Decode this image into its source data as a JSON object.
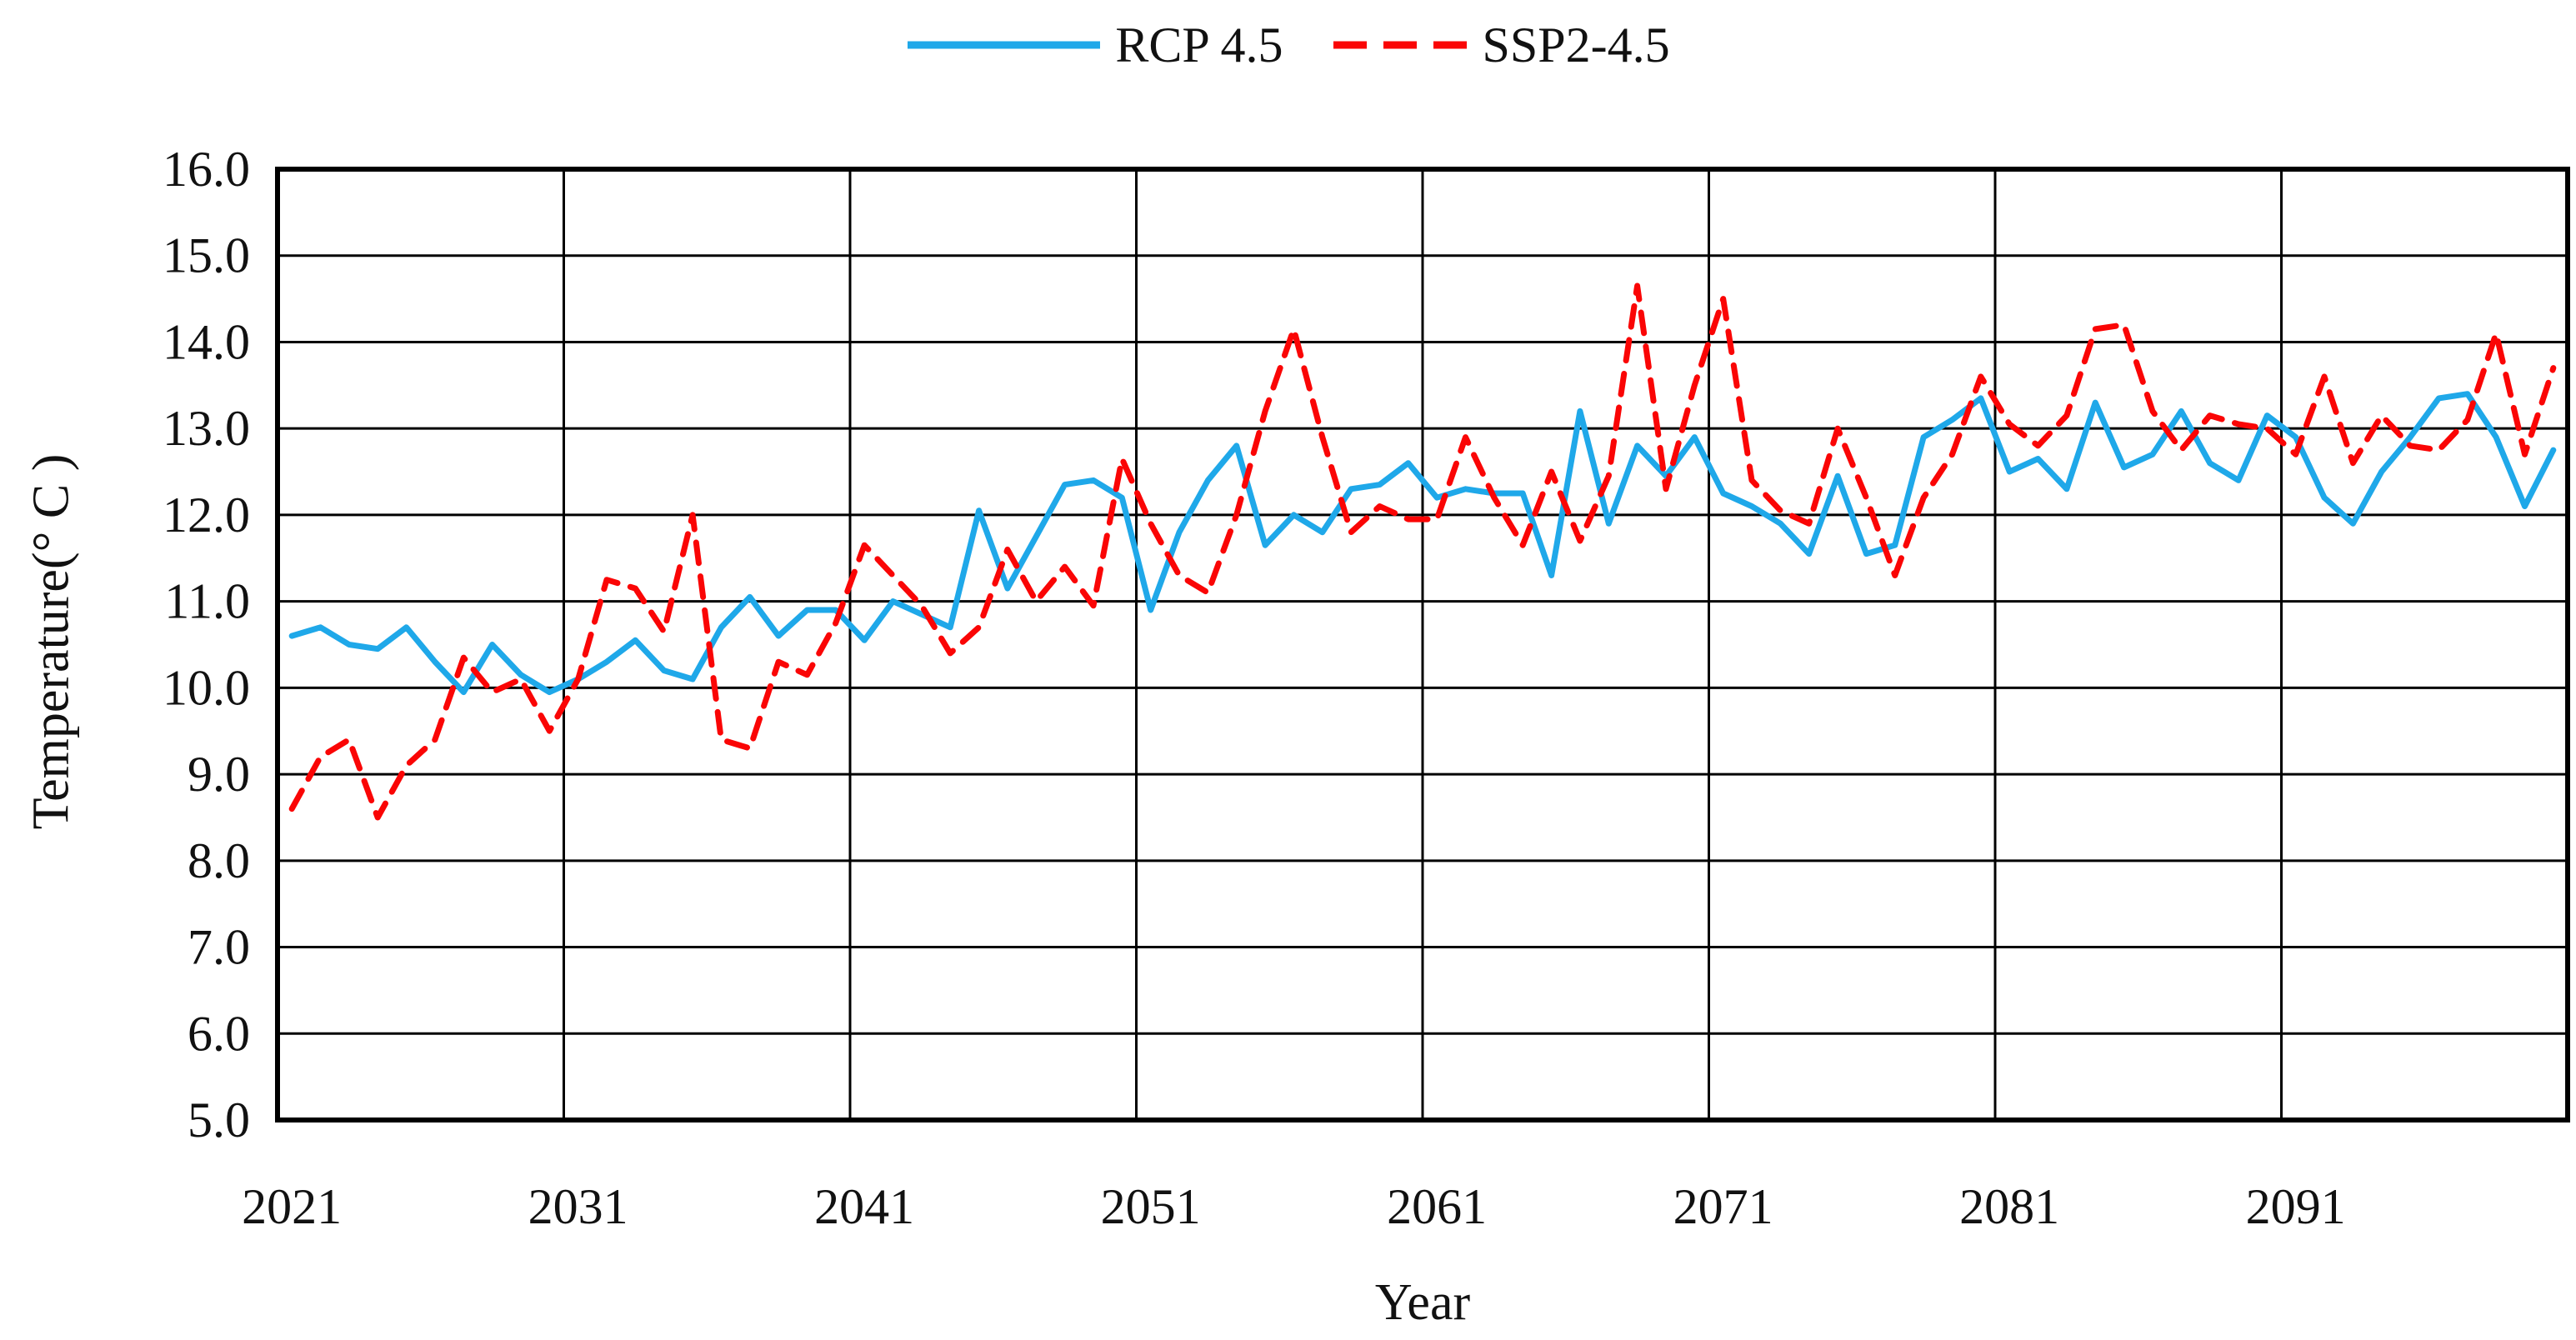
{
  "figure": {
    "background": "#ffffff",
    "grid_color": "#000000",
    "text_color": "#111111"
  },
  "legend": {
    "position": "top-center",
    "items": [
      {
        "label": "RCP 4.5",
        "color": "#1FA8E9",
        "line_style": "solid"
      },
      {
        "label": "SSP2-4.5",
        "color": "#FA0505",
        "line_style": "dashed"
      }
    ]
  },
  "chart_data": {
    "type": "line",
    "xlabel": "Year",
    "ylabel": "Temperature(° C )",
    "ylim": [
      5.0,
      16.0
    ],
    "y_gridline_interval": 1.0,
    "x_gridline_interval_years": 10,
    "grid": true,
    "legend_position": "top",
    "y_tick_labels": [
      "16.0",
      "15.0",
      "14.0",
      "13.0",
      "12.0",
      "11.0",
      "10.0",
      "9.0",
      "8.0",
      "7.0",
      "6.0",
      "5.0"
    ],
    "x_tick_labels": [
      "2021",
      "2031",
      "2041",
      "2051",
      "2061",
      "2071",
      "2081",
      "2091"
    ],
    "x": [
      2021,
      2022,
      2023,
      2024,
      2025,
      2026,
      2027,
      2028,
      2029,
      2030,
      2031,
      2032,
      2033,
      2034,
      2035,
      2036,
      2037,
      2038,
      2039,
      2040,
      2041,
      2042,
      2043,
      2044,
      2045,
      2046,
      2047,
      2048,
      2049,
      2050,
      2051,
      2052,
      2053,
      2054,
      2055,
      2056,
      2057,
      2058,
      2059,
      2060,
      2061,
      2062,
      2063,
      2064,
      2065,
      2066,
      2067,
      2068,
      2069,
      2070,
      2071,
      2072,
      2073,
      2074,
      2075,
      2076,
      2077,
      2078,
      2079,
      2080,
      2081,
      2082,
      2083,
      2084,
      2085,
      2086,
      2087,
      2088,
      2089,
      2090,
      2091,
      2092,
      2093,
      2094,
      2095,
      2096,
      2097,
      2098,
      2099,
      2100
    ],
    "series": [
      {
        "name": "RCP 4.5",
        "color": "#1FA8E9",
        "line_style": "solid",
        "values": [
          10.6,
          10.7,
          10.5,
          10.45,
          10.7,
          10.3,
          9.95,
          10.5,
          10.15,
          9.95,
          10.1,
          10.3,
          10.55,
          10.2,
          10.1,
          10.7,
          11.05,
          10.6,
          10.9,
          10.9,
          10.55,
          11.0,
          10.85,
          10.7,
          12.05,
          11.15,
          11.75,
          12.35,
          12.4,
          12.2,
          10.9,
          11.8,
          12.4,
          12.8,
          11.65,
          12.0,
          11.8,
          12.3,
          12.35,
          12.6,
          12.2,
          12.3,
          12.25,
          12.25,
          11.3,
          13.2,
          11.9,
          12.8,
          12.45,
          12.9,
          12.25,
          12.1,
          11.9,
          11.55,
          12.45,
          11.55,
          11.65,
          12.9,
          13.1,
          13.35,
          12.5,
          12.65,
          12.3,
          13.3,
          12.55,
          12.7,
          13.2,
          12.6,
          12.4,
          13.15,
          12.9,
          12.2,
          11.9,
          12.5,
          12.9,
          13.35,
          13.4,
          12.9,
          12.1,
          12.75
        ]
      },
      {
        "name": "SSP2-4.5",
        "color": "#FA0505",
        "line_style": "dashed",
        "values": [
          8.6,
          9.2,
          9.4,
          8.5,
          9.1,
          9.4,
          10.35,
          9.95,
          10.1,
          9.5,
          10.1,
          11.25,
          11.15,
          10.65,
          12.0,
          9.4,
          9.3,
          10.3,
          10.15,
          10.75,
          11.65,
          11.3,
          10.95,
          10.4,
          10.7,
          11.6,
          11.0,
          11.4,
          10.95,
          12.65,
          11.9,
          11.3,
          11.1,
          12.0,
          13.2,
          14.15,
          12.9,
          11.8,
          12.1,
          11.95,
          11.95,
          12.9,
          12.2,
          11.65,
          12.5,
          11.7,
          12.45,
          14.65,
          12.3,
          13.5,
          14.5,
          12.4,
          12.05,
          11.9,
          13.0,
          12.2,
          11.3,
          12.2,
          12.7,
          13.6,
          13.05,
          12.8,
          13.15,
          14.15,
          14.2,
          13.2,
          12.75,
          13.15,
          13.05,
          13.0,
          12.7,
          13.6,
          12.6,
          13.15,
          12.8,
          12.75,
          13.1,
          14.1,
          12.7,
          13.7
        ]
      }
    ]
  }
}
